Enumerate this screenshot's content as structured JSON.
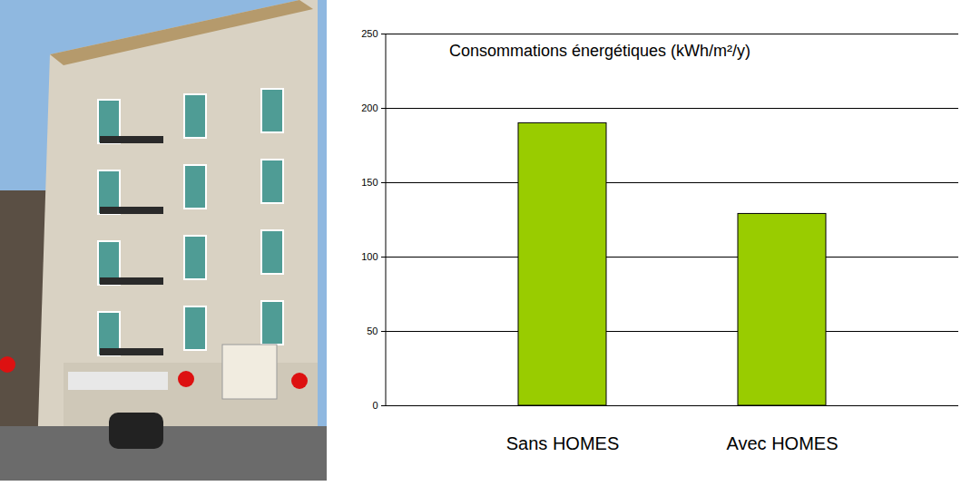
{
  "chart_data": {
    "type": "bar",
    "title": "Consommations énergétiques (kWh/m²/y)",
    "categories": [
      "Sans HOMES",
      "Avec HOMES"
    ],
    "values": [
      190,
      129
    ],
    "color": "#99cc00",
    "ylim": [
      0,
      250
    ],
    "yticks": [
      0,
      50,
      100,
      150,
      200,
      250
    ],
    "grid": true
  }
}
